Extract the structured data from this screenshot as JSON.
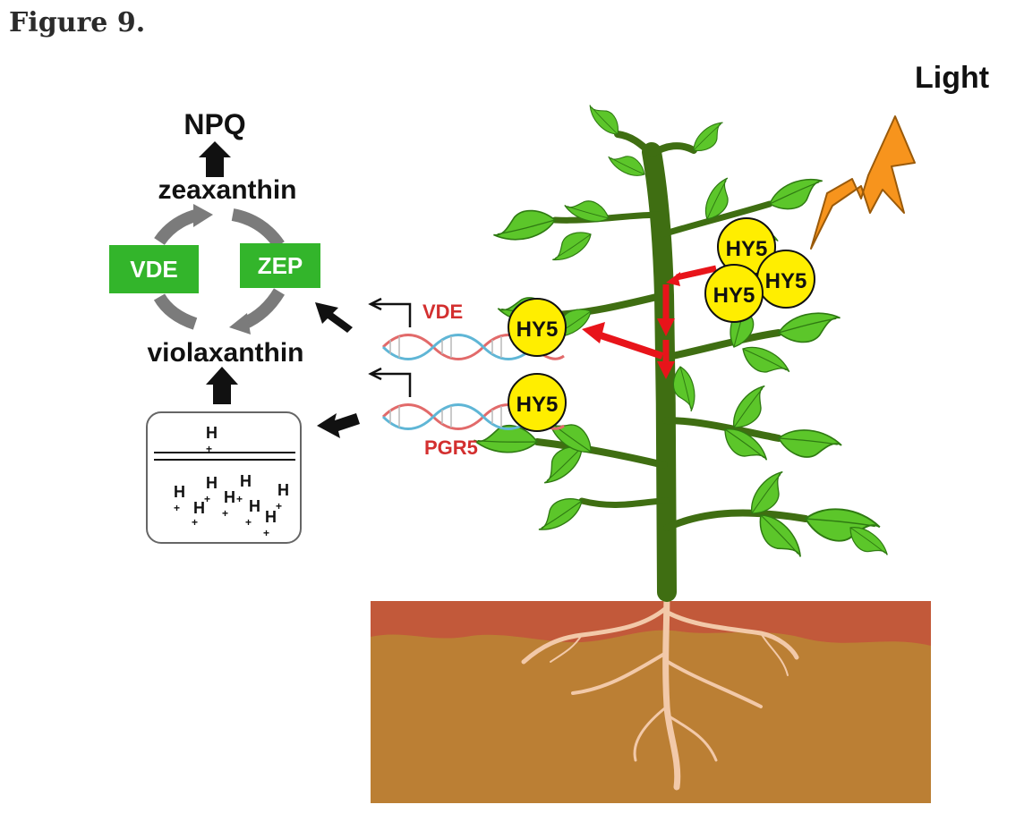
{
  "caption": "Figure 9.",
  "labels": {
    "light": "Light",
    "npq": "NPQ",
    "zeaxanthin": "zeaxanthin",
    "violaxanthin": "violaxanthin",
    "vde_enzyme": "VDE",
    "zep_enzyme": "ZEP",
    "vde_gene": "VDE",
    "pgr5_gene": "PGR5",
    "hy5": "HY5",
    "proton": "H",
    "proton_charge": "+"
  },
  "colors": {
    "enzyme_box": "#33b52b",
    "gene_label": "#d32f2f",
    "signal_arrow": "#e8141a",
    "hy5_fill": "#ffee00",
    "lightning": "#f7941d",
    "stem": "#3f6e12",
    "leaf": "#5cc62a",
    "soil_top": "#c2593a",
    "soil": "#bb7f34",
    "root": "#f2c9a9"
  }
}
